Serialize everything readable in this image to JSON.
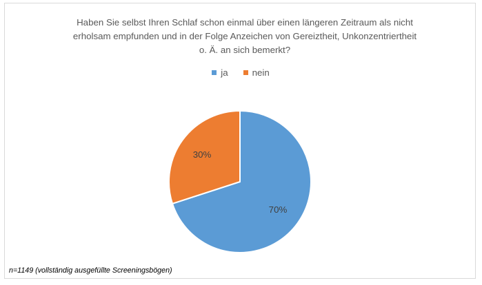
{
  "chart_data": {
    "type": "pie",
    "title_lines": [
      "Haben Sie selbst Ihren Schlaf schon einmal über einen längeren Zeitraum als nicht",
      "erholsam empfunden und in der Folge Anzeichen von Gereiztheit, Unkonzentriertheit",
      "o. Ä. an sich bemerkt?"
    ],
    "categories": [
      "ja",
      "nein"
    ],
    "values": [
      70,
      30
    ],
    "data_labels": [
      "70%",
      "30%"
    ],
    "colors": [
      "#5b9bd5",
      "#ed7d31"
    ],
    "legend_position": "top",
    "footnote": "n=1149 (vollständig ausgefüllte Screeningsbögen)"
  }
}
